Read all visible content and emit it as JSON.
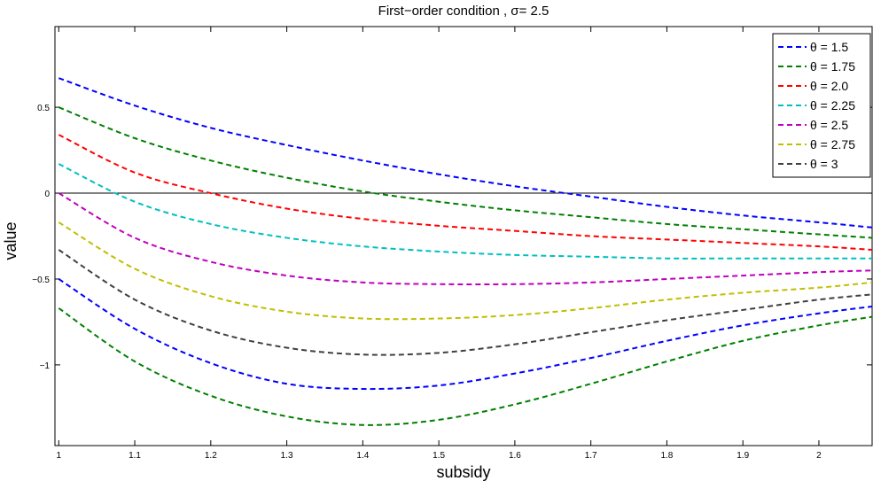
{
  "chart_data": {
    "type": "line",
    "title": "First−order condition , σ= 2.5",
    "xlabel": "subsidy",
    "ylabel": "value",
    "xlim": [
      0.995,
      2.07
    ],
    "ylim": [
      -1.47,
      0.97
    ],
    "x_ticks": [
      1,
      1.1,
      1.2,
      1.3,
      1.4,
      1.5,
      1.6,
      1.7,
      1.8,
      1.9,
      2
    ],
    "x_tick_labels": [
      "1",
      "1.1",
      "1.2",
      "1.3",
      "1.4",
      "1.5",
      "1.6",
      "1.7",
      "1.8",
      "1.9",
      "2"
    ],
    "y_ticks": [
      0.5,
      0,
      -0.5,
      -1
    ],
    "y_tick_labels": [
      "0.5",
      "0",
      "−0.5",
      "−1"
    ],
    "reference_line_y": 0,
    "grid": false,
    "legend_position": "top-right",
    "x": [
      1.0,
      1.1,
      1.2,
      1.3,
      1.4,
      1.5,
      1.6,
      1.7,
      1.8,
      1.9,
      2.0,
      2.07
    ],
    "series": [
      {
        "name": "θ = 1.5",
        "color": "#0000ff",
        "values": [
          0.67,
          0.51,
          0.38,
          0.28,
          0.19,
          0.11,
          0.04,
          -0.02,
          -0.08,
          -0.13,
          -0.17,
          -0.2
        ]
      },
      {
        "name": "θ = 1.75",
        "color": "#008000",
        "values": [
          0.5,
          0.32,
          0.19,
          0.09,
          0.01,
          -0.05,
          -0.1,
          -0.14,
          -0.18,
          -0.21,
          -0.24,
          -0.26
        ]
      },
      {
        "name": "θ = 2.0",
        "color": "#ff0000",
        "values": [
          0.34,
          0.12,
          0.0,
          -0.09,
          -0.15,
          -0.19,
          -0.22,
          -0.25,
          -0.27,
          -0.29,
          -0.31,
          -0.33
        ]
      },
      {
        "name": "θ = 2.25",
        "color": "#00bfbf",
        "values": [
          0.17,
          -0.05,
          -0.18,
          -0.26,
          -0.31,
          -0.34,
          -0.36,
          -0.37,
          -0.38,
          -0.38,
          -0.38,
          -0.38
        ]
      },
      {
        "name": "θ = 2.5",
        "color": "#bf00bf",
        "values": [
          0.0,
          -0.26,
          -0.4,
          -0.48,
          -0.52,
          -0.53,
          -0.53,
          -0.52,
          -0.5,
          -0.48,
          -0.46,
          -0.45
        ]
      },
      {
        "name": "θ = 2.75",
        "color": "#bfbf00",
        "values": [
          -0.17,
          -0.44,
          -0.6,
          -0.69,
          -0.73,
          -0.73,
          -0.71,
          -0.67,
          -0.62,
          -0.58,
          -0.55,
          -0.52
        ]
      },
      {
        "name": "θ = 3",
        "color": "#404040",
        "values": [
          -0.33,
          -0.62,
          -0.8,
          -0.9,
          -0.94,
          -0.93,
          -0.88,
          -0.81,
          -0.74,
          -0.68,
          -0.62,
          -0.59
        ]
      },
      {
        "name": "",
        "color": "#0000ff",
        "values": [
          -0.5,
          -0.79,
          -0.99,
          -1.11,
          -1.14,
          -1.12,
          -1.05,
          -0.96,
          -0.86,
          -0.77,
          -0.7,
          -0.66
        ]
      },
      {
        "name": "",
        "color": "#008000",
        "values": [
          -0.67,
          -0.98,
          -1.18,
          -1.3,
          -1.35,
          -1.32,
          -1.23,
          -1.11,
          -0.98,
          -0.86,
          -0.77,
          -0.72
        ]
      }
    ]
  }
}
